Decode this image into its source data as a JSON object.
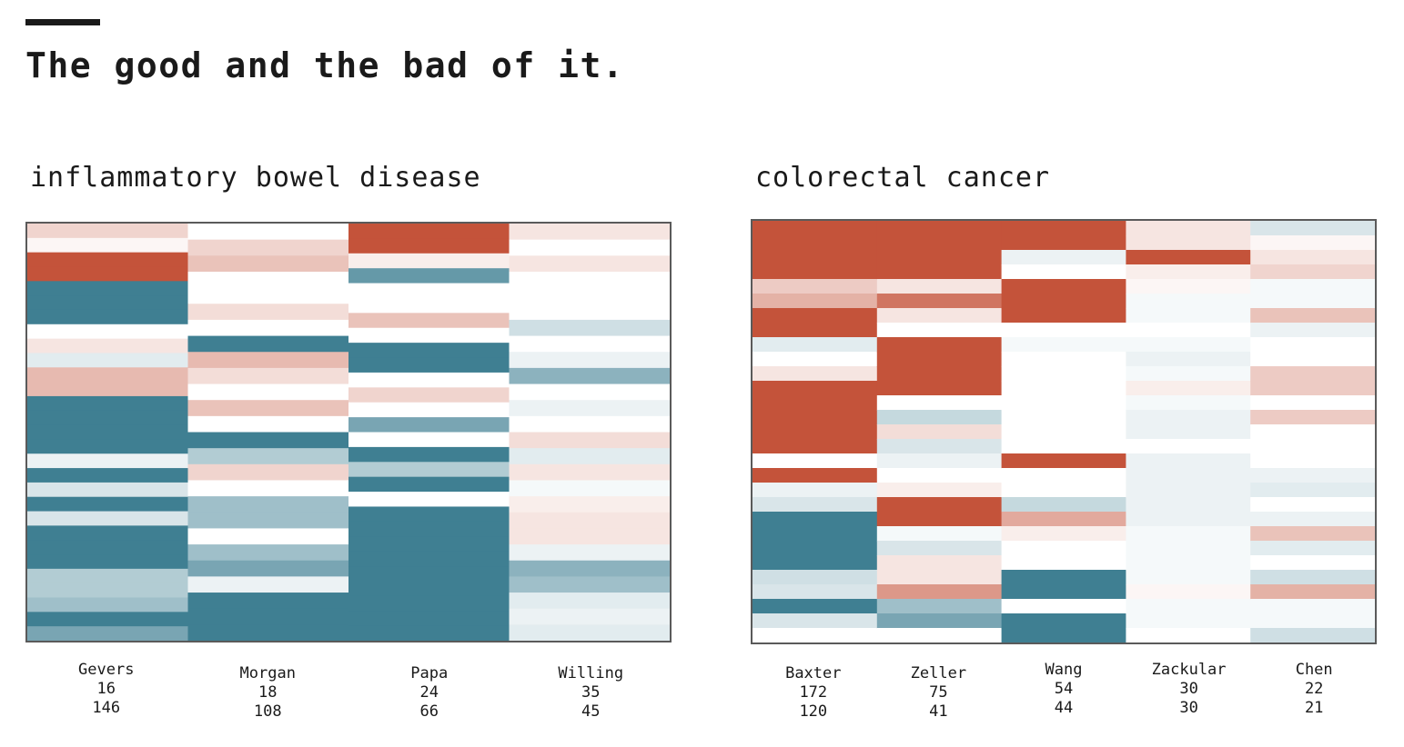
{
  "title": "The good and the bad of it.",
  "colors": {
    "red": "#c4533a",
    "teal": "#3f7f92",
    "white": "#ffffff"
  },
  "chart_data": [
    {
      "type": "heatmap",
      "title": "inflammatory bowel disease",
      "color_scale": {
        "min": -1,
        "max": 1,
        "low": "teal",
        "mid": "white",
        "high": "red"
      },
      "columns": [
        {
          "name": "Gevers",
          "n1": "16",
          "n2": "146",
          "values": [
            0.25,
            0.05,
            1,
            1,
            -1,
            -1,
            -1,
            0,
            0.15,
            -0.15,
            0.4,
            0.4,
            -1,
            -1,
            -1,
            -1,
            -0.1,
            -1,
            -0.2,
            -1,
            -0.2,
            -1,
            -1,
            -1,
            -0.4,
            -0.4,
            -0.5,
            -1,
            -0.7
          ]
        },
        {
          "name": "Morgan",
          "n1": "18",
          "n2": "108",
          "values": [
            0,
            0.25,
            0.35,
            0,
            0,
            0.2,
            0,
            -1,
            0.4,
            0.2,
            0,
            0.35,
            0,
            -1,
            -0.4,
            0.25,
            0,
            -0.5,
            -0.5,
            0,
            -0.5,
            -0.7,
            -0.1,
            -1,
            -1,
            -1
          ]
        },
        {
          "name": "Papa",
          "n1": "24",
          "n2": "66",
          "values": [
            1,
            1,
            0.1,
            -0.8,
            0,
            0,
            0.35,
            0,
            -1,
            -1,
            0,
            0.25,
            0,
            -0.7,
            0,
            -1,
            -0.4,
            -1,
            0,
            -1,
            -1,
            -1,
            -1,
            -1,
            -1,
            -1,
            -1,
            -1
          ]
        },
        {
          "name": "Willing",
          "n1": "35",
          "n2": "45",
          "values": [
            0.15,
            0,
            0.15,
            0,
            0,
            0,
            -0.25,
            0,
            -0.1,
            -0.6,
            0,
            -0.1,
            0,
            0.2,
            -0.15,
            0.15,
            -0.05,
            0.1,
            0.15,
            0.15,
            -0.1,
            -0.6,
            -0.5,
            -0.15,
            -0.1,
            -0.15
          ]
        }
      ],
      "grid": false,
      "legend": "none"
    },
    {
      "type": "heatmap",
      "title": "colorectal cancer",
      "color_scale": {
        "min": -1,
        "max": 1,
        "low": "teal",
        "mid": "white",
        "high": "red"
      },
      "columns": [
        {
          "name": "Baxter",
          "n1": "172",
          "n2": "120",
          "values": [
            1,
            1,
            1,
            1,
            0.3,
            0.45,
            1,
            1,
            -0.15,
            0,
            0.15,
            1,
            1,
            1,
            1,
            1,
            0,
            1,
            -0.1,
            -0.2,
            -1,
            -1,
            -1,
            -1,
            -0.25,
            -0.2,
            -1,
            -0.2,
            0
          ]
        },
        {
          "name": "Zeller",
          "n1": "75",
          "n2": "41",
          "values": [
            1,
            1,
            1,
            1,
            0.15,
            0.8,
            0.15,
            0,
            1,
            1,
            1,
            1,
            0,
            -0.3,
            0.2,
            -0.2,
            -0.1,
            0,
            0.1,
            1,
            1,
            -0.05,
            -0.2,
            0.15,
            0.15,
            0.6,
            -0.5,
            -0.7,
            0
          ]
        },
        {
          "name": "Wang",
          "n1": "54",
          "n2": "44",
          "values": [
            1,
            1,
            -0.1,
            0,
            1,
            1,
            1,
            0,
            -0.05,
            0,
            0,
            0,
            0,
            0,
            0,
            0,
            1,
            0,
            0,
            -0.3,
            0.5,
            0.1,
            0,
            0,
            -1,
            -1,
            0,
            -1,
            -1
          ]
        },
        {
          "name": "Zackular",
          "n1": "30",
          "n2": "30",
          "values": [
            0.15,
            0.15,
            1,
            0.1,
            0.05,
            -0.05,
            -0.05,
            0,
            -0.05,
            -0.1,
            -0.05,
            0.1,
            -0.05,
            -0.1,
            -0.1,
            0,
            -0.1,
            -0.1,
            -0.1,
            -0.1,
            -0.1,
            -0.05,
            -0.05,
            -0.05,
            -0.05,
            0.05,
            -0.05,
            -0.05,
            0
          ]
        },
        {
          "name": "Chen",
          "n1": "22",
          "n2": "21",
          "values": [
            -0.2,
            0.05,
            0.15,
            0.25,
            -0.05,
            -0.05,
            0.35,
            -0.1,
            0,
            0,
            0.3,
            0.3,
            0,
            0.3,
            0,
            0,
            0,
            -0.1,
            -0.15,
            0,
            -0.1,
            0.35,
            -0.15,
            0,
            -0.25,
            0.45,
            -0.05,
            -0.05,
            -0.25
          ]
        }
      ],
      "grid": false,
      "legend": "none"
    }
  ]
}
